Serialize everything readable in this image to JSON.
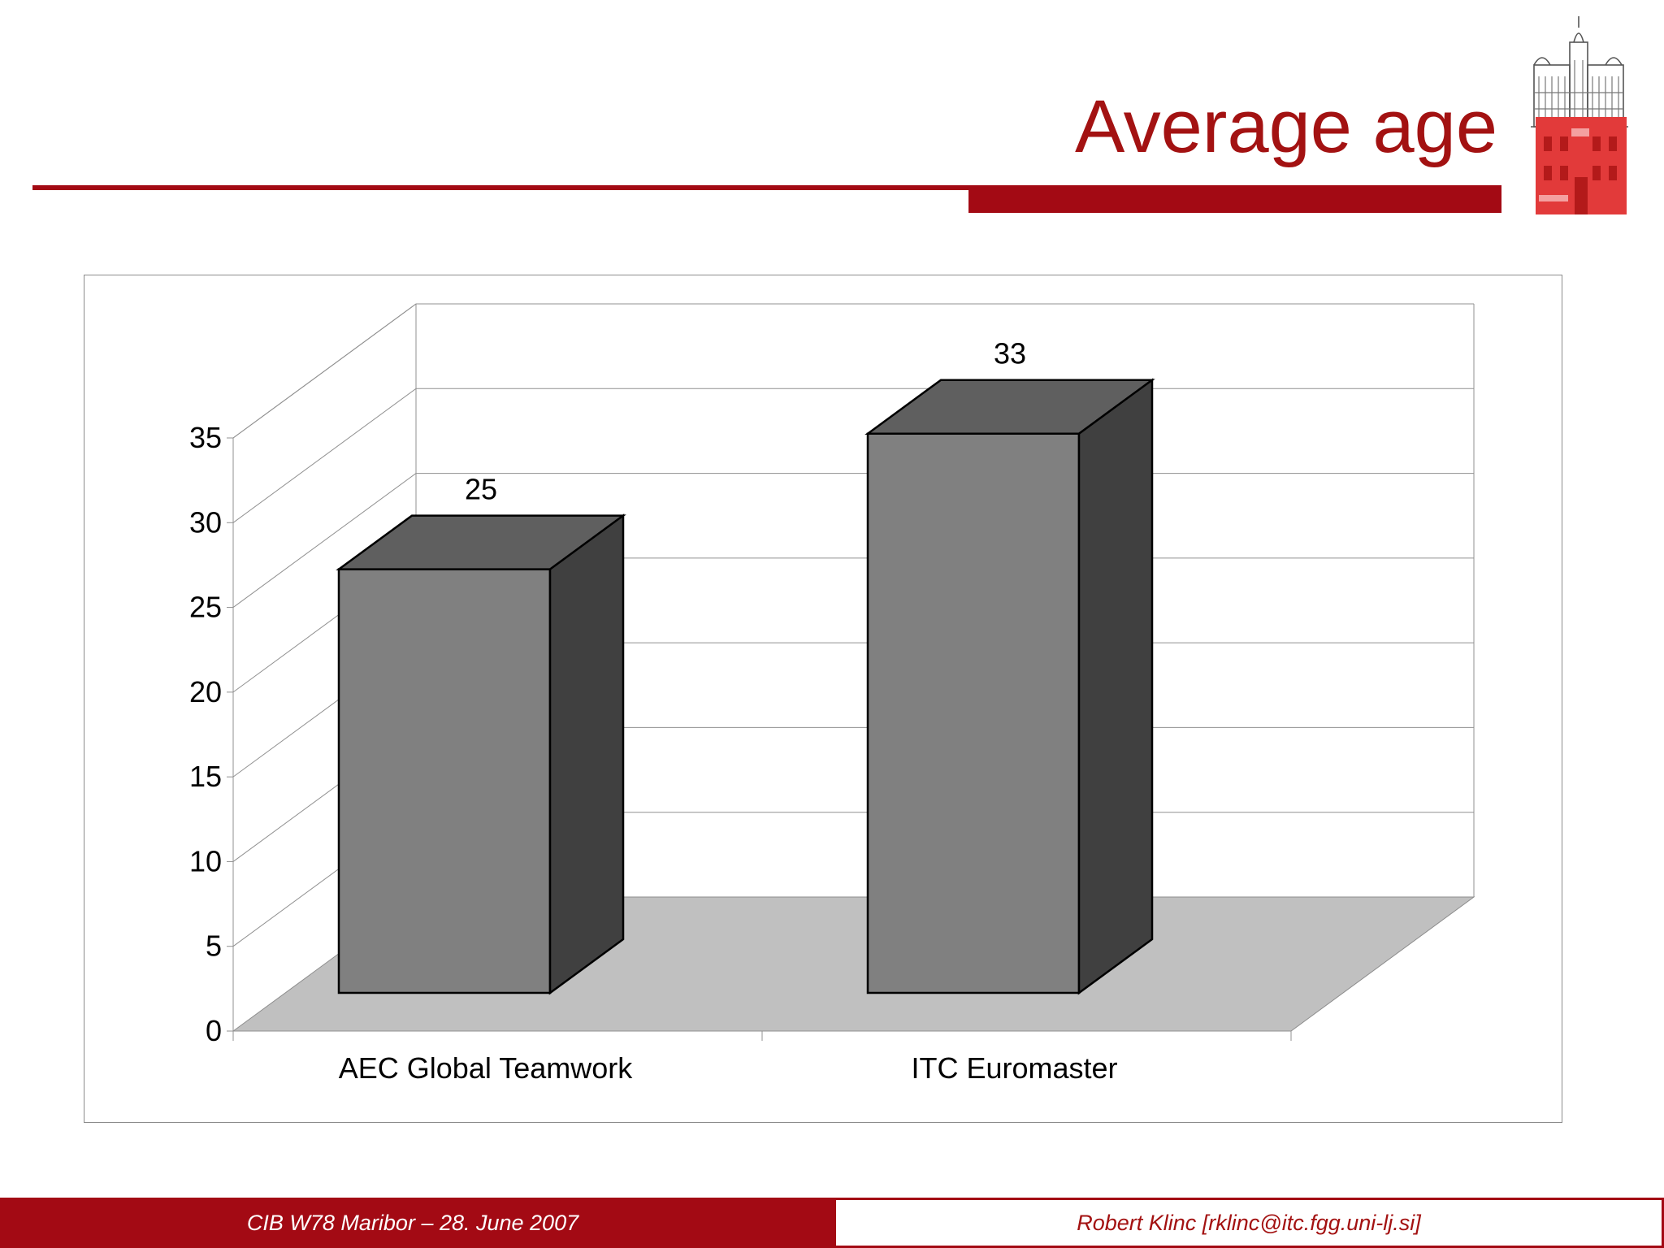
{
  "slide": {
    "title": "Average age"
  },
  "footer": {
    "left_text": "CIB W78 Maribor – 28. June 2007",
    "right_text": "Robert Klinc [rklinc@itc.fgg.uni-lj.si]"
  },
  "logo": {
    "icon": "university-building-logo",
    "colors": [
      "#a30a14",
      "#e0303a"
    ]
  },
  "colors": {
    "accent": "#a30a14",
    "title": "#a31212",
    "bar_front": "#808080",
    "bar_top": "#5f5f5f",
    "bar_side": "#404040",
    "floor": "#c0c0c0"
  },
  "chart_data": {
    "type": "bar",
    "style": "3d-column",
    "title": "",
    "xlabel": "",
    "ylabel": "",
    "categories": [
      "AEC Global Teamwork",
      "ITC Euromaster"
    ],
    "values": [
      25,
      33
    ],
    "data_labels": [
      "25",
      "33"
    ],
    "ylim": [
      0,
      35
    ],
    "yticks": [
      "0",
      "5",
      "10",
      "15",
      "20",
      "25",
      "30",
      "35"
    ],
    "grid": true,
    "legend": "none"
  }
}
